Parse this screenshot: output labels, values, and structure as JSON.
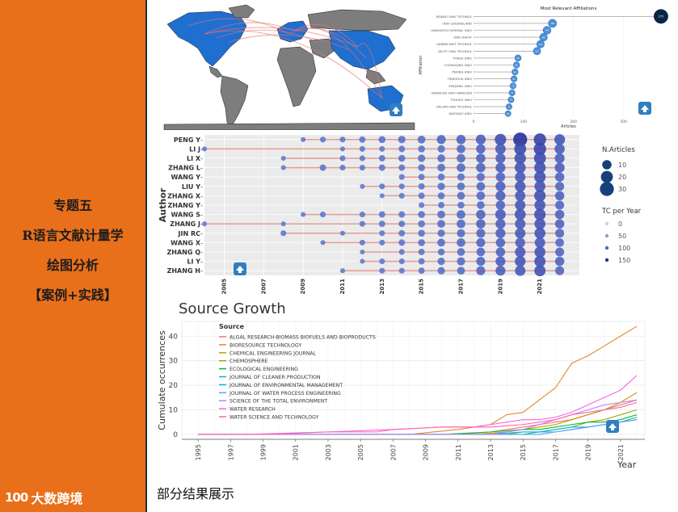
{
  "sidebar": {
    "titles": [
      "专题五",
      "R语言文献计量学",
      "绘图分析",
      "【案例+实践】"
    ],
    "brand": "大数跨境",
    "brand_logo": "100"
  },
  "caption": "部分结果展示",
  "colors": {
    "sidebar": "#e8701a",
    "accent_blue": "#08306b"
  },
  "chart_data": [
    {
      "type": "map",
      "shaded": "publishing countries (blue)",
      "unshaded": "other countries (grey)",
      "links": "collaboration arcs (red)"
    },
    {
      "type": "lollipop",
      "title": "Most Relevant Affiliations",
      "xlabel": "Articles",
      "ylabel": "Affiliation",
      "xlim": [
        0,
        380
      ],
      "xticks": [
        0,
        100,
        200,
        300
      ],
      "categories": [
        "BEIJING UNIV TECHNOL",
        "UNIV QUEENSLAND",
        "HANGZHOU NORMAL UNIV",
        "UNIV SHEFF",
        "HARBIN INST TECHNOL",
        "DELFT UNIV TECHNOL",
        "TONGJI UNIV",
        "CHONGQING UNIV",
        "PEKING UNIV",
        "TSINGHUA UNIV",
        "ZHEJIANG UNIV",
        "RADBOUD UNIV NIJMEGEN",
        "TOHOKU UNIV",
        "DALIAN UNIV TECHNOL",
        "QINGDAO UNIV"
      ],
      "values": [
        375,
        158,
        147,
        140,
        134,
        127,
        89,
        86,
        83,
        81,
        79,
        77,
        75,
        71,
        69
      ]
    },
    {
      "type": "scatter",
      "ylabel": "Author",
      "authors": [
        "PENG Y",
        "LI J",
        "LI X",
        "ZHANG L",
        "WANG Y",
        "LIU Y",
        "ZHANG X",
        "ZHANG Y",
        "WANG S",
        "ZHANG J",
        "JIN RC",
        "WANG X",
        "ZHANG Q",
        "LI Y",
        "ZHANG H"
      ],
      "xticks": [
        2005,
        2007,
        2009,
        2011,
        2013,
        2015,
        2017,
        2019,
        2021
      ],
      "xlim": [
        2004,
        2023
      ],
      "spans": [
        [
          2009,
          2022
        ],
        [
          2004,
          2022
        ],
        [
          2008,
          2022
        ],
        [
          2008,
          2022
        ],
        [
          2014,
          2022
        ],
        [
          2012,
          2022
        ],
        [
          2013,
          2022
        ],
        [
          2015,
          2022
        ],
        [
          2009,
          2022
        ],
        [
          2004,
          2022
        ],
        [
          2008,
          2022
        ],
        [
          2010,
          2022
        ],
        [
          2012,
          2022
        ],
        [
          2012,
          2022
        ],
        [
          2011,
          2022
        ]
      ],
      "points": [
        [
          [
            2009,
            1
          ],
          [
            2010,
            2
          ],
          [
            2011,
            2
          ],
          [
            2012,
            3
          ],
          [
            2013,
            4
          ],
          [
            2014,
            5
          ],
          [
            2015,
            6
          ],
          [
            2016,
            9
          ],
          [
            2017,
            10
          ],
          [
            2018,
            12
          ],
          [
            2019,
            18
          ],
          [
            2020,
            30
          ],
          [
            2021,
            22
          ],
          [
            2022,
            15
          ]
        ],
        [
          [
            2004,
            1
          ],
          [
            2011,
            1
          ],
          [
            2012,
            2
          ],
          [
            2013,
            2
          ],
          [
            2014,
            3
          ],
          [
            2015,
            4
          ],
          [
            2016,
            5
          ],
          [
            2017,
            8
          ],
          [
            2018,
            10
          ],
          [
            2019,
            14
          ],
          [
            2020,
            20
          ],
          [
            2021,
            22
          ],
          [
            2022,
            13
          ]
        ],
        [
          [
            2008,
            1
          ],
          [
            2011,
            2
          ],
          [
            2012,
            2
          ],
          [
            2013,
            3
          ],
          [
            2014,
            4
          ],
          [
            2015,
            5
          ],
          [
            2016,
            6
          ],
          [
            2017,
            8
          ],
          [
            2018,
            10
          ],
          [
            2019,
            12
          ],
          [
            2020,
            18
          ],
          [
            2021,
            20
          ],
          [
            2022,
            12
          ]
        ],
        [
          [
            2008,
            1
          ],
          [
            2010,
            3
          ],
          [
            2011,
            2
          ],
          [
            2012,
            2
          ],
          [
            2013,
            3
          ],
          [
            2014,
            3
          ],
          [
            2015,
            4
          ],
          [
            2016,
            6
          ],
          [
            2017,
            8
          ],
          [
            2018,
            10
          ],
          [
            2019,
            12
          ],
          [
            2020,
            16
          ],
          [
            2021,
            18
          ],
          [
            2022,
            12
          ]
        ],
        [
          [
            2014,
            2
          ],
          [
            2015,
            3
          ],
          [
            2016,
            4
          ],
          [
            2017,
            5
          ],
          [
            2018,
            7
          ],
          [
            2019,
            10
          ],
          [
            2020,
            14
          ],
          [
            2021,
            18
          ],
          [
            2022,
            10
          ]
        ],
        [
          [
            2012,
            1
          ],
          [
            2013,
            2
          ],
          [
            2014,
            2
          ],
          [
            2015,
            3
          ],
          [
            2016,
            5
          ],
          [
            2017,
            6
          ],
          [
            2018,
            8
          ],
          [
            2019,
            12
          ],
          [
            2020,
            15
          ],
          [
            2021,
            16
          ],
          [
            2022,
            9
          ]
        ],
        [
          [
            2013,
            1
          ],
          [
            2014,
            2
          ],
          [
            2015,
            3
          ],
          [
            2016,
            4
          ],
          [
            2017,
            6
          ],
          [
            2018,
            8
          ],
          [
            2019,
            12
          ],
          [
            2020,
            14
          ],
          [
            2021,
            18
          ],
          [
            2022,
            10
          ]
        ],
        [
          [
            2015,
            2
          ],
          [
            2016,
            3
          ],
          [
            2017,
            4
          ],
          [
            2018,
            6
          ],
          [
            2019,
            10
          ],
          [
            2020,
            14
          ],
          [
            2021,
            16
          ],
          [
            2022,
            9
          ]
        ],
        [
          [
            2009,
            1
          ],
          [
            2010,
            2
          ],
          [
            2012,
            2
          ],
          [
            2013,
            3
          ],
          [
            2014,
            3
          ],
          [
            2015,
            4
          ],
          [
            2016,
            6
          ],
          [
            2017,
            8
          ],
          [
            2018,
            10
          ],
          [
            2019,
            14
          ],
          [
            2020,
            16
          ],
          [
            2021,
            18
          ],
          [
            2022,
            10
          ]
        ],
        [
          [
            2004,
            1
          ],
          [
            2008,
            1
          ],
          [
            2012,
            2
          ],
          [
            2013,
            3
          ],
          [
            2014,
            3
          ],
          [
            2015,
            4
          ],
          [
            2016,
            6
          ],
          [
            2017,
            8
          ],
          [
            2018,
            10
          ],
          [
            2019,
            12
          ],
          [
            2020,
            14
          ],
          [
            2021,
            16
          ],
          [
            2022,
            10
          ]
        ],
        [
          [
            2008,
            2
          ],
          [
            2011,
            1
          ],
          [
            2013,
            2
          ],
          [
            2014,
            3
          ],
          [
            2015,
            4
          ],
          [
            2016,
            5
          ],
          [
            2017,
            7
          ],
          [
            2018,
            9
          ],
          [
            2019,
            12
          ],
          [
            2020,
            14
          ],
          [
            2021,
            16
          ],
          [
            2022,
            9
          ]
        ],
        [
          [
            2010,
            1
          ],
          [
            2012,
            2
          ],
          [
            2013,
            2
          ],
          [
            2014,
            3
          ],
          [
            2015,
            4
          ],
          [
            2016,
            6
          ],
          [
            2017,
            8
          ],
          [
            2018,
            9
          ],
          [
            2019,
            10
          ],
          [
            2020,
            12
          ],
          [
            2021,
            14
          ],
          [
            2022,
            8
          ]
        ],
        [
          [
            2012,
            1
          ],
          [
            2014,
            2
          ],
          [
            2015,
            3
          ],
          [
            2016,
            4
          ],
          [
            2017,
            6
          ],
          [
            2018,
            8
          ],
          [
            2019,
            10
          ],
          [
            2020,
            14
          ],
          [
            2021,
            16
          ],
          [
            2022,
            9
          ]
        ],
        [
          [
            2012,
            1
          ],
          [
            2013,
            2
          ],
          [
            2014,
            2
          ],
          [
            2015,
            3
          ],
          [
            2016,
            5
          ],
          [
            2017,
            7
          ],
          [
            2018,
            9
          ],
          [
            2019,
            12
          ],
          [
            2020,
            15
          ],
          [
            2021,
            17
          ],
          [
            2022,
            10
          ]
        ],
        [
          [
            2011,
            1
          ],
          [
            2013,
            2
          ],
          [
            2014,
            2
          ],
          [
            2015,
            3
          ],
          [
            2016,
            5
          ],
          [
            2017,
            6
          ],
          [
            2018,
            9
          ],
          [
            2019,
            12
          ],
          [
            2020,
            14
          ],
          [
            2021,
            17
          ],
          [
            2022,
            9
          ]
        ]
      ],
      "legend_size": {
        "title": "N.Articles",
        "values": [
          10,
          20,
          30
        ]
      },
      "legend_color": {
        "title": "TC per Year",
        "values": [
          0,
          50,
          100,
          150
        ]
      }
    },
    {
      "type": "line",
      "title": "Source Growth",
      "xlabel": "Year",
      "ylabel": "Cumulate occurrences",
      "legend_title": "Source",
      "xlim": [
        1994,
        2022.5
      ],
      "ylim": [
        -2,
        46
      ],
      "xticks": [
        1995,
        1997,
        1999,
        2001,
        2003,
        2005,
        2007,
        2009,
        2011,
        2013,
        2015,
        2017,
        2019,
        2021
      ],
      "yticks": [
        0,
        10,
        20,
        30,
        40
      ],
      "series": [
        {
          "name": "ALGAL RESEARCH-BIOMASS BIOFUELS AND BIOPRODUCTS",
          "color": "#f8766d",
          "x": [
            2011,
            2013,
            2014,
            2015,
            2016,
            2017,
            2018,
            2019,
            2020,
            2021,
            2022
          ],
          "y": [
            0,
            1,
            2,
            3,
            4,
            5,
            6,
            8,
            10,
            12,
            14
          ]
        },
        {
          "name": "BIORESOURCE TECHNOLOGY",
          "color": "#e08b28",
          "x": [
            2008,
            2011,
            2013,
            2014,
            2015,
            2016,
            2017,
            2018,
            2019,
            2020,
            2021,
            2022
          ],
          "y": [
            0,
            2,
            4,
            8,
            9,
            14,
            19,
            29,
            32,
            36,
            40,
            44
          ]
        },
        {
          "name": "CHEMICAL ENGINEERING JOURNAL",
          "color": "#c49a00",
          "x": [
            2012,
            2014,
            2015,
            2016,
            2017,
            2018,
            2019,
            2020,
            2021,
            2022
          ],
          "y": [
            0,
            1,
            2,
            3,
            4,
            6,
            8,
            10,
            13,
            17
          ]
        },
        {
          "name": "CHEMOSPHERE",
          "color": "#99a800",
          "x": [
            2014,
            2015,
            2016,
            2017,
            2018,
            2019,
            2020,
            2021,
            2022
          ],
          "y": [
            0,
            1,
            1,
            2,
            3,
            5,
            6,
            8,
            10
          ]
        },
        {
          "name": "ECOLOGICAL ENGINEERING",
          "color": "#00ba38",
          "x": [
            2010,
            2013,
            2015,
            2016,
            2017,
            2018,
            2019,
            2020,
            2021,
            2022
          ],
          "y": [
            0,
            1,
            2,
            2,
            3,
            4,
            5,
            5,
            6,
            8
          ]
        },
        {
          "name": "JOURNAL OF CLEANER PRODUCTION",
          "color": "#00bfa0",
          "x": [
            2015,
            2016,
            2017,
            2018,
            2019,
            2020,
            2021,
            2022
          ],
          "y": [
            0,
            1,
            1,
            2,
            3,
            4,
            5,
            7
          ]
        },
        {
          "name": "JOURNAL OF ENVIRONMENTAL MANAGEMENT",
          "color": "#00b4f0",
          "x": [
            2013,
            2015,
            2016,
            2017,
            2018,
            2019,
            2020,
            2021,
            2022
          ],
          "y": [
            0,
            1,
            1,
            2,
            3,
            3,
            4,
            5,
            6
          ]
        },
        {
          "name": "JOURNAL OF WATER PROCESS ENGINEERING",
          "color": "#619cff",
          "x": [
            2016,
            2017,
            2018,
            2019,
            2020,
            2021,
            2022
          ],
          "y": [
            0,
            1,
            2,
            3,
            4,
            5,
            6
          ]
        },
        {
          "name": "SCIENCE OF THE TOTAL ENVIRONMENT",
          "color": "#b983ff",
          "x": [
            2013,
            2015,
            2016,
            2017,
            2018,
            2019,
            2020,
            2021,
            2022
          ],
          "y": [
            0,
            2,
            4,
            6,
            8,
            10,
            12,
            13,
            14
          ]
        },
        {
          "name": "WATER RESEARCH",
          "color": "#f564e3",
          "x": [
            1998,
            2003,
            2006,
            2007,
            2010,
            2012,
            2013,
            2014,
            2015,
            2016,
            2017,
            2018,
            2019,
            2020,
            2021,
            2022
          ],
          "y": [
            0,
            1,
            1,
            2,
            3,
            3,
            4,
            5,
            6,
            6,
            7,
            9,
            12,
            15,
            18,
            24
          ]
        },
        {
          "name": "WATER SCIENCE AND TECHNOLOGY",
          "color": "#ff64b0",
          "x": [
            1999,
            2003,
            2007,
            2010,
            2013,
            2015,
            2016,
            2017,
            2018,
            2019,
            2020,
            2021,
            2022
          ],
          "y": [
            0,
            1,
            2,
            3,
            3,
            4,
            5,
            6,
            8,
            9,
            10,
            11,
            13
          ]
        }
      ]
    }
  ]
}
